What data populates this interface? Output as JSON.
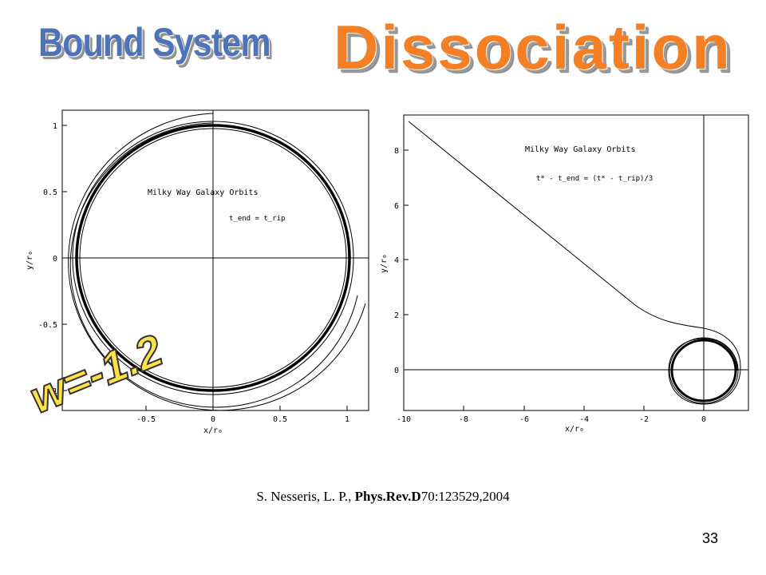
{
  "titles": {
    "bound": "Bound System",
    "dissociation": "Dissociation"
  },
  "overlay_label": "w=-1.2",
  "citation": {
    "authors": "S. Nesseris,  L. P., ",
    "journal": "Phys.Rev.D",
    "rest": "70:123529,2004"
  },
  "slide_number": "33",
  "left_plot": {
    "annotation": "Milky Way Galaxy Orbits",
    "condition": "t_end = t_rip",
    "xlabel": "x/r₀",
    "ylabel": "y/r₀",
    "x_ticks": [
      "-0.5",
      "0",
      "0.5",
      "1"
    ],
    "y_ticks": [
      "1",
      "0.5",
      "0",
      "-0.5",
      "-1"
    ]
  },
  "right_plot": {
    "annotation": "Milky Way Galaxy Orbits",
    "condition": "t* - t_end = (t* - t_rip)/3",
    "xlabel": "x/r₀",
    "ylabel": "y/r₀",
    "x_ticks": [
      "-10",
      "-8",
      "-6",
      "-4",
      "-2",
      "0"
    ],
    "y_ticks": [
      "8",
      "6",
      "4",
      "2",
      "0"
    ]
  }
}
